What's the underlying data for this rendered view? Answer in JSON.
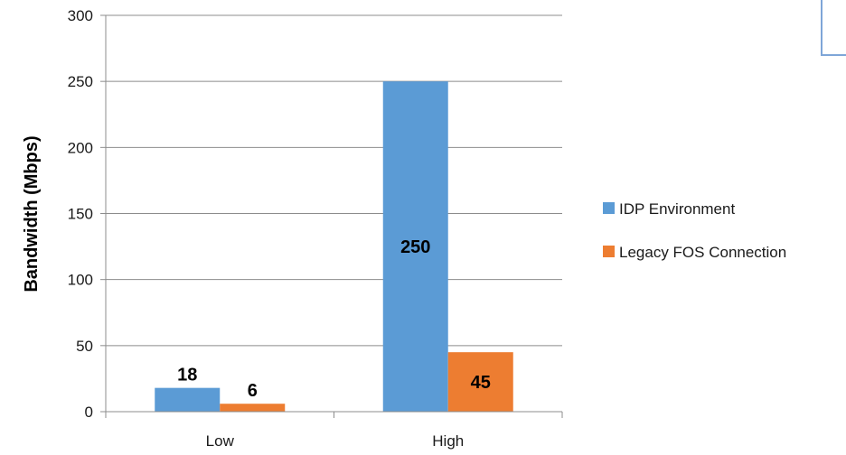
{
  "chart_data": {
    "type": "bar",
    "categories": [
      "Low",
      "High"
    ],
    "series": [
      {
        "name": "IDP Environment",
        "values": [
          18,
          250
        ],
        "color": "#5B9BD5"
      },
      {
        "name": "Legacy FOS Connection",
        "values": [
          6,
          45
        ],
        "color": "#ED7D31"
      }
    ],
    "ylabel": "Bandwidth (Mbps)",
    "xlabel": "",
    "ylim": [
      0,
      300
    ],
    "yticks": [
      0,
      50,
      100,
      150,
      200,
      250,
      300
    ],
    "grid": true,
    "legend_position": "right",
    "data_labels": true
  }
}
